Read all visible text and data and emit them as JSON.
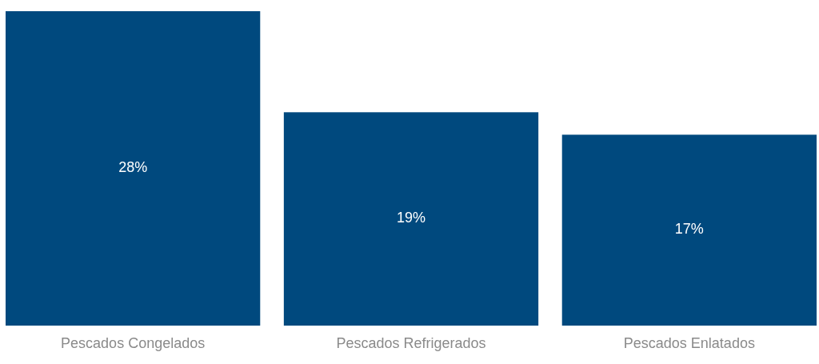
{
  "chart_data": {
    "type": "bar",
    "categories": [
      "Pescados Congelados",
      "Pescados Refrigerados",
      "Pescados Enlatados"
    ],
    "values": [
      28,
      19,
      17
    ],
    "value_labels": [
      "28%",
      "19%",
      "17%"
    ],
    "color": "#00497e"
  }
}
